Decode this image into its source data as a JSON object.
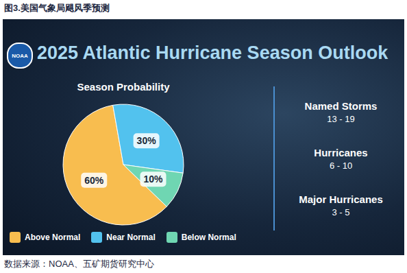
{
  "figure": {
    "caption": "图3.美国气象局飓风季预测",
    "logo": "NOAA",
    "headline": "2025 Atlantic Hurricane Season Outlook",
    "source": "数据来源：NOAA、五矿期货研究中心"
  },
  "chart_data": {
    "type": "pie",
    "title": "Season Probability",
    "categories": [
      "Above Normal",
      "Near Normal",
      "Below Normal"
    ],
    "values": [
      60,
      30,
      10
    ],
    "value_labels": [
      "60%",
      "30%",
      "10%"
    ],
    "colors": [
      "#f8bd4f",
      "#52c2ee",
      "#6fd6b2"
    ],
    "data_labels": true,
    "legend": "bottom"
  },
  "stats": [
    {
      "label": "Named Storms",
      "value": "13 - 19"
    },
    {
      "label": "Hurricanes",
      "value": "6 - 10"
    },
    {
      "label": "Major Hurricanes",
      "value": "3 - 5"
    }
  ]
}
